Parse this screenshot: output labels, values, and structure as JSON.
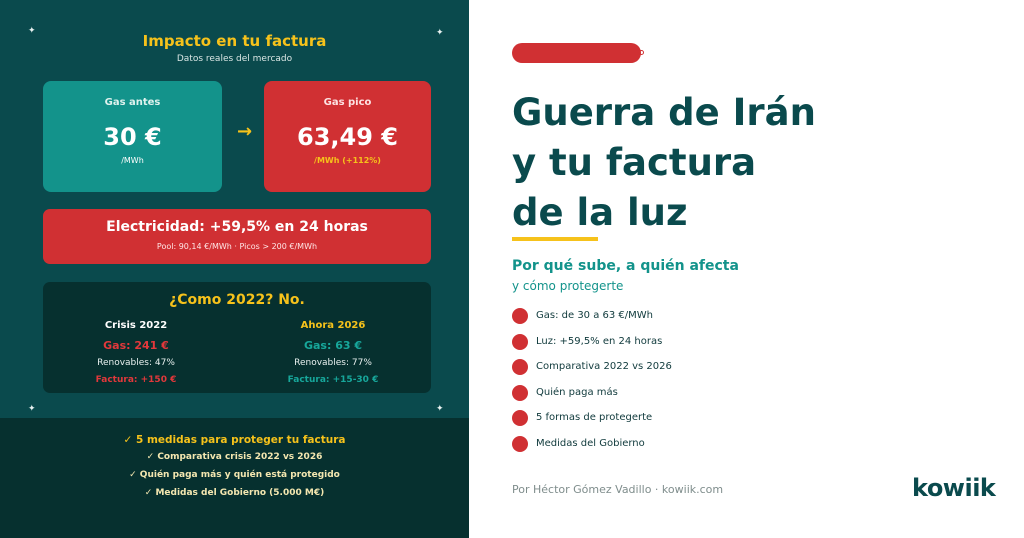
{
  "left": {
    "title": "Impacto en tu factura",
    "subtitle": "Datos reales del mercado",
    "gas_before": {
      "label": "Gas antes",
      "value": "30 €",
      "unit": "/MWh"
    },
    "arrow": "→",
    "gas_peak": {
      "label": "Gas pico",
      "value": "63,49 €",
      "unit": "/MWh (+112%)"
    },
    "electricity": {
      "title": "Electricidad: +59,5% en 24 horas",
      "detail": "Pool: 90,14 €/MWh · Picos > 200 €/MWh"
    },
    "comparison": {
      "title": "¿Como 2022? No.",
      "crisis_2022": {
        "heading": "Crisis 2022",
        "gas": "Gas: 241 €",
        "renewables": "Renovables: 47%",
        "bill": "Factura: +150 €"
      },
      "now_2026": {
        "heading": "Ahora 2026",
        "gas": "Gas: 63 €",
        "renewables": "Renovables: 77%",
        "bill": "Factura: +15-30 €"
      }
    },
    "bullets": [
      "✓ 5 medidas para proteger tu factura",
      "✓ Comparativa crisis 2022 vs 2026",
      "✓ Quién paga más y quién está protegido",
      "✓ Medidas del Gobierno (5.000 M€)"
    ]
  },
  "right": {
    "headline_lines": [
      "Guerra de Irán",
      "y tu factura",
      "de la luz"
    ],
    "subheading": "Por qué sube, a quién afecta",
    "subheading2": "y cómo protegerte",
    "list": [
      "Gas: de 30 a 63 €/MWh",
      "Luz: +59,5% en 24 horas",
      "Comparativa 2022 vs 2026",
      "Quién paga más",
      "5 formas de protegerte",
      "Medidas del Gobierno"
    ],
    "byline": "Por Héctor Gómez Vadillo · kowiik.com",
    "logo": "kowiik"
  },
  "colors": {
    "dark_teal": "#0a4a4d",
    "darker_teal": "#06302f",
    "teal": "#13938b",
    "red": "#d03033",
    "yellow": "#f6c21b"
  }
}
